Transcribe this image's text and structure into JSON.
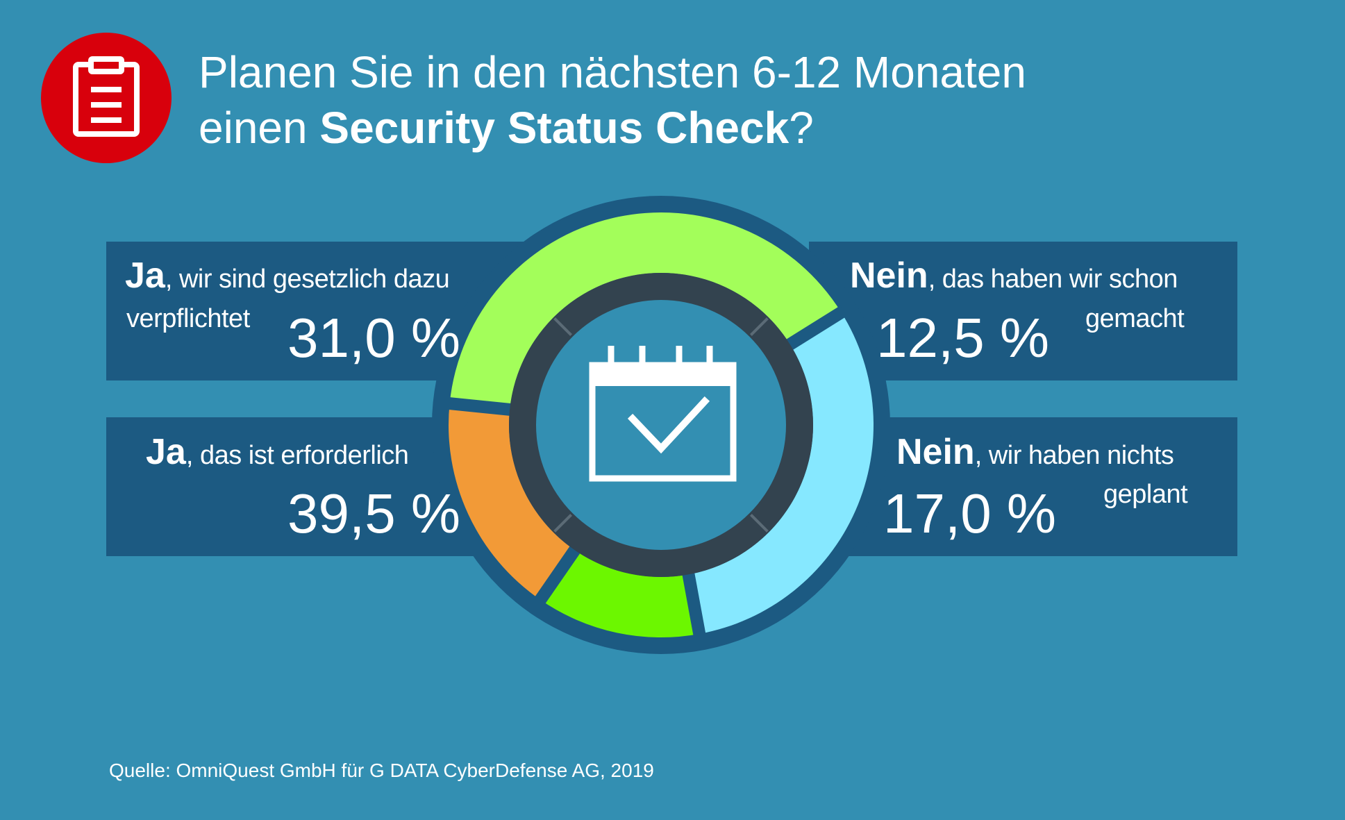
{
  "header": {
    "icon": "clipboard-icon",
    "title_line1": "Planen Sie in den nächsten 6-12 Monaten",
    "title_line2_prefix": "einen ",
    "title_line2_bold": "Security Status Check",
    "title_line2_suffix": "?"
  },
  "center_icon": "calendar-check-icon",
  "colors": {
    "background": "#338fb2",
    "band": "#1c5a82",
    "inner_ring": "#33434f",
    "badge": "#d8000c",
    "slice_1": "#86e8ff",
    "slice_2": "#6cf700",
    "slice_3": "#f29a37",
    "slice_4": "#a3fe5a"
  },
  "chart_data": {
    "type": "pie",
    "variant": "donut",
    "title": "Planen Sie in den nächsten 6-12 Monaten einen Security Status Check?",
    "slices": [
      {
        "lead": "Ja",
        "rest_line1": ", wir sind gesetzlich dazu",
        "rest_line2": "verpflichtet",
        "value": 31.0,
        "value_label": "31,0 %",
        "color": "#86e8ff"
      },
      {
        "lead": "Nein",
        "rest_line1": ", das haben wir schon",
        "rest_line2": "gemacht",
        "value": 12.5,
        "value_label": "12,5 %",
        "color": "#6cf700"
      },
      {
        "lead": "Nein",
        "rest_line1": ", wir haben nichts",
        "rest_line2": "geplant",
        "value": 17.0,
        "value_label": "17,0 %",
        "color": "#f29a37"
      },
      {
        "lead": "Ja",
        "rest_line1": ", das ist erforderlich",
        "rest_line2": "",
        "value": 39.5,
        "value_label": "39,5 %",
        "color": "#a3fe5a"
      }
    ]
  },
  "footer": {
    "source": "Quelle: OmniQuest GmbH für G DATA CyberDefense AG, 2019"
  }
}
